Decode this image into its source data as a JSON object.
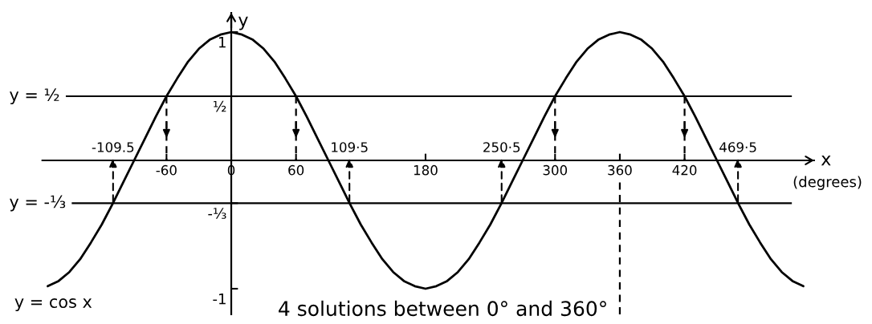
{
  "chart_data": {
    "type": "line",
    "xlabel": "x",
    "ylabel": "y",
    "x": [
      -170,
      -160,
      -150,
      -140,
      -130,
      -120,
      -110,
      -100,
      -90,
      -80,
      -70,
      -60,
      -50,
      -40,
      -30,
      -20,
      -10,
      0,
      10,
      20,
      30,
      40,
      50,
      60,
      70,
      80,
      90,
      100,
      110,
      120,
      130,
      140,
      150,
      160,
      170,
      180,
      190,
      200,
      210,
      220,
      230,
      240,
      250,
      260,
      270,
      280,
      290,
      300,
      310,
      320,
      330,
      340,
      350,
      360,
      370,
      380,
      390,
      400,
      410,
      420,
      430,
      440,
      450,
      460,
      470,
      480,
      490,
      500,
      510,
      520,
      530
    ],
    "series": [
      {
        "name": "y = cos x",
        "color": "#000000",
        "values": [
          -0.98,
          -0.94,
          -0.87,
          -0.77,
          -0.64,
          -0.5,
          -0.34,
          -0.17,
          0,
          0.17,
          0.34,
          0.5,
          0.64,
          0.77,
          0.87,
          0.94,
          0.98,
          1,
          0.98,
          0.94,
          0.87,
          0.77,
          0.64,
          0.5,
          0.34,
          0.17,
          0,
          -0.17,
          -0.34,
          -0.5,
          -0.64,
          -0.77,
          -0.87,
          -0.94,
          -0.98,
          -1,
          -0.98,
          -0.94,
          -0.87,
          -0.77,
          -0.64,
          -0.5,
          -0.34,
          -0.17,
          0,
          0.17,
          0.34,
          0.5,
          0.64,
          0.77,
          0.87,
          0.94,
          0.98,
          1,
          0.98,
          0.94,
          0.87,
          0.77,
          0.64,
          0.5,
          0.34,
          0.17,
          0,
          -0.17,
          -0.34,
          -0.5,
          -0.64,
          -0.77,
          -0.87,
          -0.94,
          -0.98
        ]
      }
    ],
    "xlim": [
      -175,
      540
    ],
    "ylim": [
      -1.2,
      1.15
    ],
    "xticks": [
      -60,
      0,
      60,
      180,
      300,
      360,
      420
    ],
    "yticks": [
      1,
      {
        "value": 0.5,
        "label": "½"
      },
      {
        "value": -0.3333,
        "label": "-⅓"
      },
      -1
    ],
    "ref_lines": [
      {
        "axis": "y",
        "value": 0.5,
        "label": "y = ½",
        "color": "#000000"
      },
      {
        "axis": "y",
        "value": -0.3333,
        "label": "y = -⅓",
        "color": "#000000"
      },
      {
        "axis": "x",
        "value": -60,
        "color": "#000000",
        "line_style": "dashed"
      },
      {
        "axis": "x",
        "value": 60,
        "color": "#000000",
        "line_style": "dashed"
      },
      {
        "axis": "x",
        "value": 300,
        "color": "#000000",
        "line_style": "dashed"
      },
      {
        "axis": "x",
        "value": 420,
        "color": "#000000",
        "line_style": "dashed"
      },
      {
        "axis": "x",
        "value": 360,
        "color": "#000000",
        "line_style": "dashed"
      }
    ],
    "annotations": [
      "(degrees)",
      "4 solutions between 0° and 360°",
      {
        "text": "-109.5",
        "x": -109.5,
        "y": -0.3333
      },
      {
        "text": "109·5",
        "x": 109.5,
        "y": -0.3333
      },
      {
        "text": "250·5",
        "x": 250.5,
        "y": -0.3333
      },
      {
        "text": "469·5",
        "x": 469.5,
        "y": -0.3333
      }
    ]
  }
}
